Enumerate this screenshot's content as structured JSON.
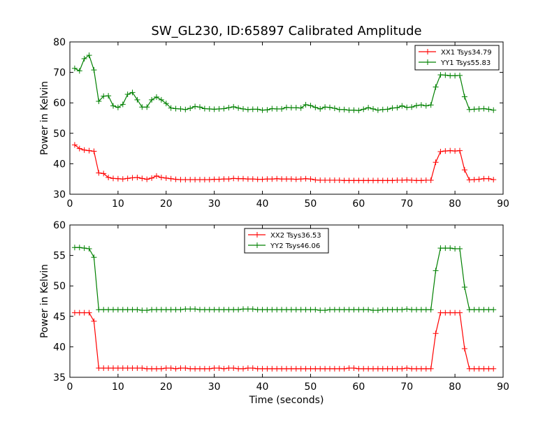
{
  "figure": {
    "title": "SW_GL230, ID:65897 Calibrated Amplitude",
    "xlabel": "Time (seconds)"
  },
  "chart_data": [
    {
      "type": "line",
      "ylabel": "Power in Kelvin",
      "xlim": [
        0,
        90
      ],
      "ylim": [
        30,
        80
      ],
      "xticks": [
        0,
        10,
        20,
        30,
        40,
        50,
        60,
        70,
        80,
        90
      ],
      "yticks": [
        30,
        40,
        50,
        60,
        70,
        80
      ],
      "grid": false,
      "legend_position": "top-right",
      "x": [
        1,
        2,
        3,
        4,
        5,
        6,
        7,
        8,
        9,
        10,
        11,
        12,
        13,
        14,
        15,
        16,
        17,
        18,
        19,
        20,
        21,
        22,
        23,
        24,
        25,
        26,
        27,
        28,
        29,
        30,
        31,
        32,
        33,
        34,
        35,
        36,
        37,
        38,
        39,
        40,
        41,
        42,
        43,
        44,
        45,
        46,
        47,
        48,
        49,
        50,
        51,
        52,
        53,
        54,
        55,
        56,
        57,
        58,
        59,
        60,
        61,
        62,
        63,
        64,
        65,
        66,
        67,
        68,
        69,
        70,
        71,
        72,
        73,
        74,
        75,
        76,
        77,
        78,
        79,
        80,
        81,
        82,
        83,
        84,
        85,
        86,
        87,
        88
      ],
      "series": [
        {
          "name": "XX1 Tsys34.79",
          "color": "#ff0000",
          "values": [
            46.2,
            45.0,
            44.5,
            44.3,
            44.1,
            37.0,
            36.8,
            35.5,
            35.2,
            35.1,
            35.0,
            35.2,
            35.4,
            35.5,
            35.2,
            34.9,
            35.3,
            36.0,
            35.5,
            35.3,
            35.1,
            34.9,
            34.8,
            34.8,
            34.8,
            34.8,
            34.8,
            34.8,
            34.8,
            34.9,
            34.9,
            35.0,
            35.0,
            35.2,
            35.1,
            35.1,
            35.0,
            35.0,
            34.9,
            34.9,
            35.0,
            35.0,
            35.1,
            35.0,
            35.0,
            35.0,
            34.9,
            35.0,
            35.1,
            35.0,
            34.7,
            34.6,
            34.6,
            34.6,
            34.6,
            34.6,
            34.5,
            34.5,
            34.5,
            34.5,
            34.5,
            34.5,
            34.5,
            34.5,
            34.5,
            34.5,
            34.5,
            34.6,
            34.6,
            34.7,
            34.6,
            34.5,
            34.5,
            34.6,
            34.6,
            40.5,
            44.0,
            44.2,
            44.3,
            44.2,
            44.3,
            38.0,
            34.7,
            34.8,
            34.9,
            35.1,
            35.1,
            34.8
          ]
        },
        {
          "name": "YY1 Tsys55.83",
          "color": "#008000",
          "values": [
            71.3,
            70.5,
            74.5,
            75.6,
            70.8,
            60.5,
            62.2,
            62.3,
            59.0,
            58.5,
            59.5,
            62.8,
            63.4,
            61.0,
            58.6,
            58.6,
            61.0,
            61.9,
            61.0,
            59.8,
            58.3,
            58.1,
            58.0,
            57.8,
            58.2,
            58.8,
            58.6,
            58.1,
            58.0,
            57.9,
            58.0,
            58.1,
            58.4,
            58.7,
            58.3,
            58.0,
            57.8,
            57.9,
            57.9,
            57.6,
            57.7,
            58.1,
            58.0,
            58.0,
            58.5,
            58.4,
            58.4,
            58.3,
            59.4,
            59.1,
            58.5,
            58.0,
            58.6,
            58.5,
            58.2,
            57.8,
            57.8,
            57.6,
            57.6,
            57.5,
            57.9,
            58.4,
            58.0,
            57.6,
            57.8,
            57.9,
            58.3,
            58.4,
            59.0,
            58.5,
            58.6,
            59.1,
            59.3,
            59.0,
            59.3,
            65.2,
            69.2,
            69.1,
            68.9,
            68.9,
            69.0,
            62.0,
            57.8,
            57.9,
            58.0,
            58.1,
            57.9,
            57.6
          ]
        }
      ]
    },
    {
      "type": "line",
      "ylabel": "Power in Kelvin",
      "xlabel": "Time (seconds)",
      "xlim": [
        0,
        90
      ],
      "ylim": [
        35,
        60
      ],
      "xticks": [
        0,
        10,
        20,
        30,
        40,
        50,
        60,
        70,
        80,
        90
      ],
      "yticks": [
        35,
        40,
        45,
        50,
        55,
        60
      ],
      "grid": false,
      "legend_position": "top-center",
      "x": [
        1,
        2,
        3,
        4,
        5,
        6,
        7,
        8,
        9,
        10,
        11,
        12,
        13,
        14,
        15,
        16,
        17,
        18,
        19,
        20,
        21,
        22,
        23,
        24,
        25,
        26,
        27,
        28,
        29,
        30,
        31,
        32,
        33,
        34,
        35,
        36,
        37,
        38,
        39,
        40,
        41,
        42,
        43,
        44,
        45,
        46,
        47,
        48,
        49,
        50,
        51,
        52,
        53,
        54,
        55,
        56,
        57,
        58,
        59,
        60,
        61,
        62,
        63,
        64,
        65,
        66,
        67,
        68,
        69,
        70,
        71,
        72,
        73,
        74,
        75,
        76,
        77,
        78,
        79,
        80,
        81,
        82,
        83,
        84,
        85,
        86,
        87,
        88
      ],
      "series": [
        {
          "name": "XX2 Tsys36.53",
          "color": "#ff0000",
          "values": [
            45.6,
            45.6,
            45.6,
            45.6,
            44.2,
            36.5,
            36.5,
            36.5,
            36.5,
            36.5,
            36.5,
            36.5,
            36.5,
            36.5,
            36.5,
            36.4,
            36.4,
            36.4,
            36.4,
            36.5,
            36.5,
            36.4,
            36.5,
            36.5,
            36.4,
            36.4,
            36.4,
            36.4,
            36.4,
            36.5,
            36.5,
            36.4,
            36.5,
            36.5,
            36.4,
            36.4,
            36.5,
            36.5,
            36.4,
            36.4,
            36.4,
            36.4,
            36.4,
            36.4,
            36.4,
            36.4,
            36.4,
            36.4,
            36.4,
            36.4,
            36.4,
            36.4,
            36.4,
            36.4,
            36.4,
            36.4,
            36.4,
            36.5,
            36.5,
            36.4,
            36.4,
            36.4,
            36.4,
            36.4,
            36.4,
            36.4,
            36.4,
            36.4,
            36.4,
            36.5,
            36.4,
            36.4,
            36.4,
            36.4,
            36.4,
            42.2,
            45.6,
            45.6,
            45.6,
            45.6,
            45.6,
            39.7,
            36.4,
            36.4,
            36.4,
            36.4,
            36.4,
            36.4
          ]
        },
        {
          "name": "YY2 Tsys46.06",
          "color": "#008000",
          "values": [
            56.3,
            56.3,
            56.2,
            56.1,
            54.7,
            46.1,
            46.1,
            46.1,
            46.1,
            46.1,
            46.1,
            46.1,
            46.1,
            46.1,
            46.0,
            46.0,
            46.1,
            46.1,
            46.1,
            46.1,
            46.1,
            46.1,
            46.1,
            46.2,
            46.2,
            46.2,
            46.1,
            46.1,
            46.1,
            46.1,
            46.1,
            46.1,
            46.1,
            46.1,
            46.1,
            46.2,
            46.2,
            46.2,
            46.1,
            46.1,
            46.1,
            46.1,
            46.1,
            46.1,
            46.1,
            46.1,
            46.1,
            46.1,
            46.1,
            46.1,
            46.1,
            46.0,
            46.0,
            46.1,
            46.1,
            46.1,
            46.1,
            46.1,
            46.1,
            46.1,
            46.1,
            46.1,
            46.0,
            46.0,
            46.1,
            46.1,
            46.1,
            46.1,
            46.1,
            46.2,
            46.1,
            46.1,
            46.1,
            46.1,
            46.1,
            52.5,
            56.2,
            56.2,
            56.2,
            56.1,
            56.1,
            49.8,
            46.1,
            46.1,
            46.1,
            46.1,
            46.1,
            46.1
          ]
        }
      ]
    }
  ]
}
